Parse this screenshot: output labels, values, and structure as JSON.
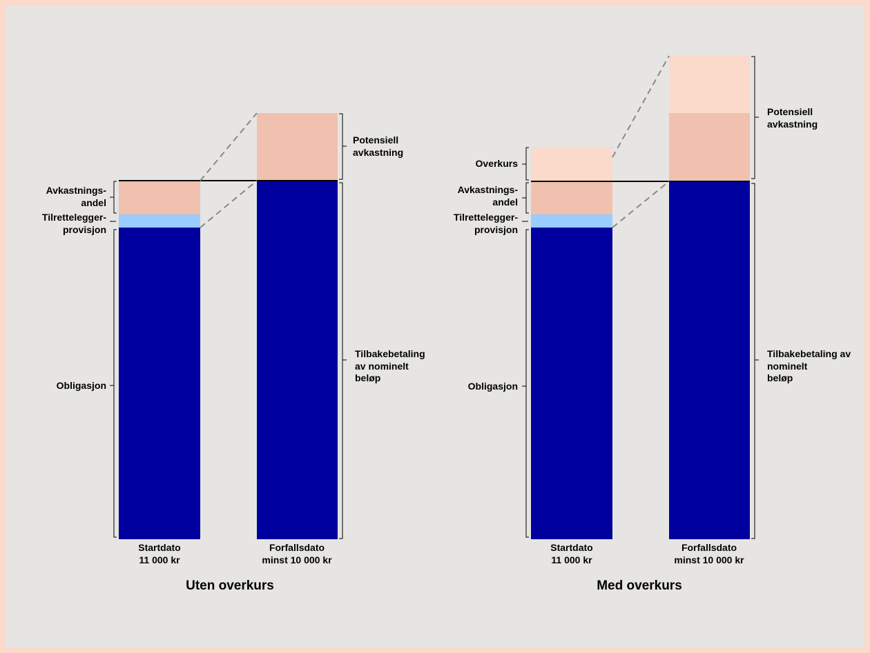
{
  "colors": {
    "frame": "#fbd9cb",
    "background": "#e6e5e3",
    "bond": "#00009f",
    "fee": "#99ccff",
    "return_share": "#f0c1ae",
    "premium": "#fbd9cb",
    "divider_line": "#000000",
    "dashed": "#888888"
  },
  "panels": [
    {
      "title": "Uten overkurs",
      "start_bar": {
        "label_line1": "Startdato",
        "label_line2": "11 000 kr"
      },
      "end_bar": {
        "label_line1": "Forfallsdato",
        "label_line2": "minst 10 000 kr"
      },
      "left_labels": {
        "return_share": [
          "Avkastnings-",
          "andel"
        ],
        "fee": [
          "Tilrettelegger-",
          "provisjon"
        ],
        "bond": "Obligasjon"
      },
      "right_labels": {
        "potential_return": [
          "Potensiell",
          "avkastning"
        ],
        "repayment": [
          "Tilbakebetaling",
          "av nominelt",
          "beløp"
        ]
      }
    },
    {
      "title": "Med overkurs",
      "start_bar": {
        "label_line1": "Startdato",
        "label_line2": "11 000 kr"
      },
      "end_bar": {
        "label_line1": "Forfallsdato",
        "label_line2": "minst 10 000 kr"
      },
      "left_labels": {
        "premium": "Overkurs",
        "return_share": [
          "Avkastnings-",
          "andel"
        ],
        "fee": [
          "Tilrettelegger-",
          "provisjon"
        ],
        "bond": "Obligasjon"
      },
      "right_labels": {
        "potential_return": [
          "Potensiell",
          "avkastning"
        ],
        "repayment": [
          "Tilbakebetaling av",
          "nominelt",
          "beløp"
        ]
      }
    }
  ]
}
